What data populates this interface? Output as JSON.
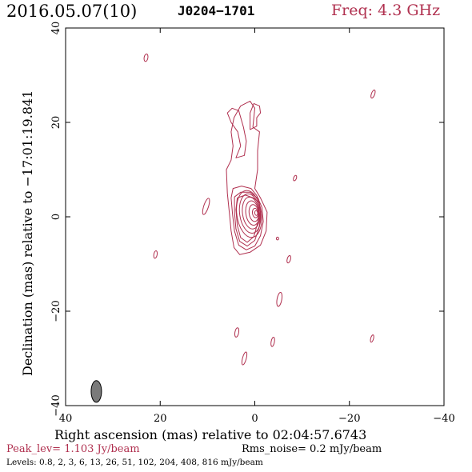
{
  "header": {
    "date_epoch": "2016.05.07(10)",
    "source": "J0204−1701",
    "freq": "Freq: 4.3 GHz"
  },
  "footer": {
    "peak": "Peak_lev=  1.103 Jy/beam",
    "rms": "Rms_noise=  0.2 mJy/beam",
    "levels": "Levels: 0.8,   2,   3,   6,  13,  26,  51, 102, 204, 408, 816 mJy/beam"
  },
  "chart_data": {
    "type": "contour",
    "xlabel": "Right ascension (mas) relative to 02:04:57.6743",
    "ylabel": "Declination (mas) relative to −17:01:19.841",
    "xlim": [
      40,
      -40
    ],
    "ylim": [
      -40,
      40
    ],
    "x_ticks": [
      40,
      20,
      0,
      -20,
      -40
    ],
    "y_ticks": [
      -40,
      -20,
      0,
      20,
      40
    ],
    "x_tick_labels": [
      "40",
      "20",
      "0",
      "−20",
      "−40"
    ],
    "y_tick_labels": [
      "−40",
      "−20",
      "0",
      "20",
      "40"
    ],
    "contour_levels_mJy": [
      0.8,
      2,
      3,
      6,
      13,
      26,
      51,
      102,
      204,
      408,
      816
    ],
    "peak_Jy_per_beam": 1.103,
    "rms_mJy_per_beam": 0.2,
    "core": {
      "x": -0.5,
      "y": 0.8
    },
    "beam": {
      "x": 33.5,
      "y": -37,
      "major_mas": 4.6,
      "minor_mas": 2.2,
      "pa_deg": 0
    },
    "colors": {
      "contour": "#b0304f",
      "beam": "#7a7a7a",
      "freq_text": "#b0304f"
    },
    "jet_contours": [
      [
        [
          0.0,
          6.0
        ],
        [
          -1.2,
          4.0
        ],
        [
          -2.6,
          1.0
        ],
        [
          -2.4,
          -3.0
        ],
        [
          -1.2,
          -6.0
        ],
        [
          1.0,
          -7.5
        ],
        [
          3.2,
          -8.0
        ],
        [
          4.4,
          -6.5
        ],
        [
          5.0,
          -3.0
        ],
        [
          5.3,
          0.0
        ],
        [
          5.8,
          5.0
        ],
        [
          6.0,
          10.0
        ],
        [
          5.0,
          12.0
        ],
        [
          4.6,
          15.0
        ],
        [
          5.0,
          18.0
        ],
        [
          4.4,
          21.0
        ],
        [
          3.0,
          23.5
        ],
        [
          1.0,
          24.5
        ],
        [
          0.0,
          23.0
        ],
        [
          0.4,
          19.0
        ],
        [
          -1.0,
          18.0
        ],
        [
          -0.6,
          14.0
        ],
        [
          -0.6,
          10.0
        ],
        [
          0.0,
          6.0
        ]
      ],
      [
        [
          -0.4,
          4.5
        ],
        [
          -1.5,
          2.0
        ],
        [
          -1.8,
          -1.0
        ],
        [
          -1.2,
          -4.0
        ],
        [
          0.0,
          -6.2
        ],
        [
          1.8,
          -7.0
        ],
        [
          3.4,
          -6.0
        ],
        [
          4.3,
          -3.0
        ],
        [
          4.7,
          0.5
        ],
        [
          5.0,
          4.0
        ],
        [
          4.6,
          6.0
        ],
        [
          2.8,
          6.5
        ],
        [
          0.8,
          6.0
        ],
        [
          -0.4,
          4.5
        ]
      ],
      [
        [
          -0.8,
          3.8
        ],
        [
          -1.2,
          1.0
        ],
        [
          -1.0,
          -2.0
        ],
        [
          0.0,
          -5.0
        ],
        [
          1.6,
          -6.2
        ],
        [
          3.2,
          -5.2
        ],
        [
          4.0,
          -2.5
        ],
        [
          4.3,
          1.0
        ],
        [
          4.3,
          4.2
        ],
        [
          3.0,
          5.2
        ],
        [
          1.0,
          5.2
        ],
        [
          -0.8,
          3.8
        ]
      ],
      [
        [
          -1.0,
          3.0
        ],
        [
          -0.7,
          -1.0
        ],
        [
          0.2,
          -4.2
        ],
        [
          1.6,
          -5.4
        ],
        [
          3.0,
          -4.4
        ],
        [
          3.7,
          -1.8
        ],
        [
          4.0,
          1.5
        ],
        [
          3.7,
          4.0
        ],
        [
          2.0,
          4.6
        ],
        [
          0.3,
          4.0
        ],
        [
          -1.0,
          3.0
        ]
      ]
    ],
    "jet_core_ellipses": [
      {
        "cx": 1.2,
        "cy": 0.6,
        "rx": 2.6,
        "ry": 5.0,
        "rot": -8
      },
      {
        "cx": 1.0,
        "cy": 0.7,
        "rx": 2.2,
        "ry": 4.2,
        "rot": -8
      },
      {
        "cx": 0.8,
        "cy": 0.8,
        "rx": 1.8,
        "ry": 3.4,
        "rot": -8
      },
      {
        "cx": 0.5,
        "cy": 0.8,
        "rx": 1.4,
        "ry": 2.6,
        "rot": -8
      },
      {
        "cx": 0.2,
        "cy": 0.8,
        "rx": 1.0,
        "ry": 1.8,
        "rot": -8
      },
      {
        "cx": -0.1,
        "cy": 0.8,
        "rx": 0.6,
        "ry": 1.0,
        "rot": -8
      },
      {
        "cx": -0.3,
        "cy": 0.8,
        "rx": 0.3,
        "ry": 0.5,
        "rot": -8
      }
    ],
    "extended_contours": [
      [
        [
          4.0,
          12.5
        ],
        [
          3.0,
          15.0
        ],
        [
          3.6,
          18.0
        ],
        [
          5.0,
          20.0
        ],
        [
          5.8,
          22.0
        ],
        [
          4.8,
          23.0
        ],
        [
          3.4,
          22.5
        ],
        [
          2.4,
          19.0
        ],
        [
          1.8,
          16.0
        ],
        [
          2.2,
          13.0
        ],
        [
          4.0,
          12.5
        ]
      ],
      [
        [
          1.0,
          18.5
        ],
        [
          -0.4,
          19.2
        ],
        [
          -0.4,
          21.0
        ],
        [
          -1.2,
          22.0
        ],
        [
          -1.0,
          23.5
        ],
        [
          0.2,
          24.0
        ],
        [
          1.0,
          22.0
        ],
        [
          1.0,
          18.5
        ]
      ]
    ],
    "blobs": [
      {
        "cx": 23.0,
        "cy": 33.7,
        "rx": 0.4,
        "ry": 0.8,
        "rot": 10
      },
      {
        "cx": -25.0,
        "cy": 26.0,
        "rx": 0.35,
        "ry": 0.9,
        "rot": 20
      },
      {
        "cx": -8.5,
        "cy": 8.2,
        "rx": 0.3,
        "ry": 0.6,
        "rot": 20
      },
      {
        "cx": 10.3,
        "cy": 2.2,
        "rx": 0.5,
        "ry": 1.8,
        "rot": 18
      },
      {
        "cx": 21.0,
        "cy": -8.0,
        "rx": 0.35,
        "ry": 0.8,
        "rot": 10
      },
      {
        "cx": -4.8,
        "cy": -4.6,
        "rx": 0.25,
        "ry": 0.3,
        "rot": 0
      },
      {
        "cx": -7.2,
        "cy": -9.0,
        "rx": 0.35,
        "ry": 0.8,
        "rot": 15
      },
      {
        "cx": -5.2,
        "cy": -17.5,
        "rx": 0.5,
        "ry": 1.5,
        "rot": 10
      },
      {
        "cx": 3.8,
        "cy": -24.5,
        "rx": 0.4,
        "ry": 1.0,
        "rot": 10
      },
      {
        "cx": -3.8,
        "cy": -26.5,
        "rx": 0.35,
        "ry": 1.0,
        "rot": 10
      },
      {
        "cx": 2.2,
        "cy": -30.0,
        "rx": 0.4,
        "ry": 1.4,
        "rot": 15
      },
      {
        "cx": -24.8,
        "cy": -25.8,
        "rx": 0.3,
        "ry": 0.8,
        "rot": 15
      }
    ]
  }
}
